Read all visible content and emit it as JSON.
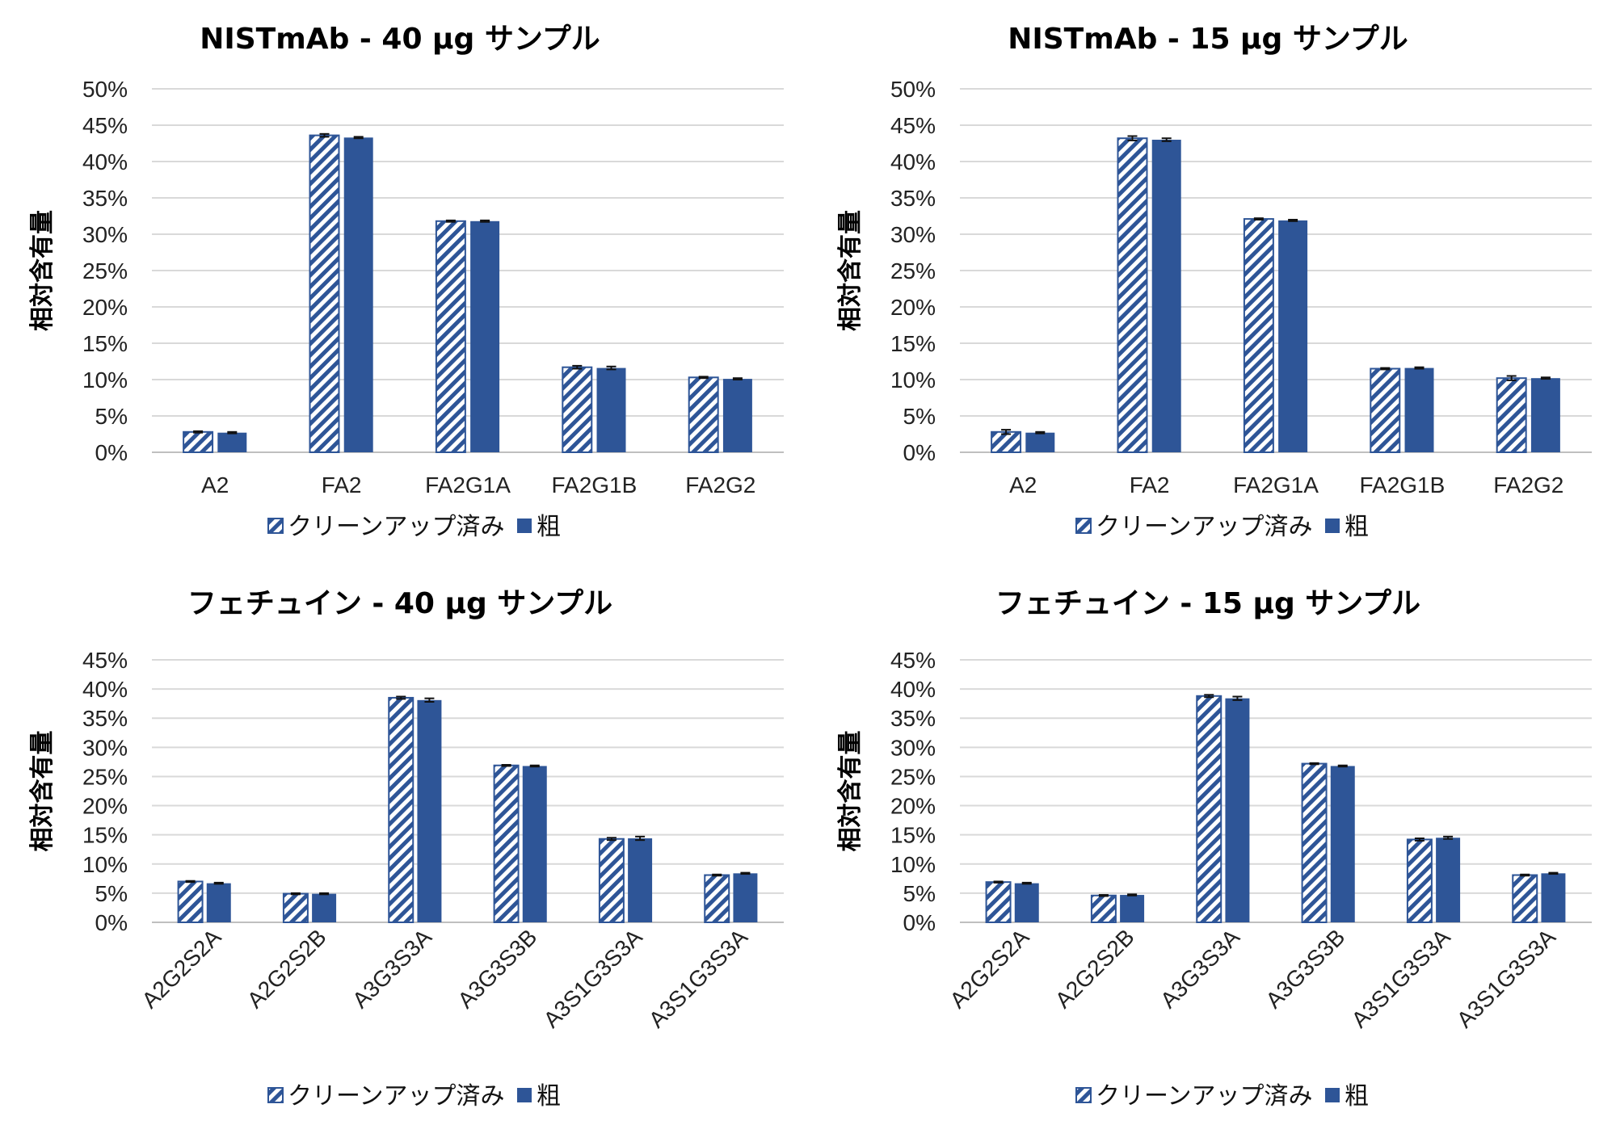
{
  "legend": {
    "series1": "クリーンアップ済み",
    "series2": "粗"
  },
  "colors": {
    "bar": "#2e5597",
    "hatch": "#2e5597",
    "grid": "#d9d9d9",
    "axis": "#bfbfbf",
    "error": "#111111"
  },
  "chart_data": [
    {
      "type": "bar",
      "title": "NISTmAb - 40 µg サンプル",
      "ylabel": "相対含有量",
      "xlabel": "",
      "ylim": [
        0,
        50
      ],
      "yticks": [
        "0%",
        "5%",
        "10%",
        "15%",
        "20%",
        "25%",
        "30%",
        "35%",
        "40%",
        "45%",
        "50%"
      ],
      "categories": [
        "A2",
        "FA2",
        "FA2G1A",
        "FA2G1B",
        "FA2G2"
      ],
      "rotate_labels": false,
      "grid": true,
      "legend_position": "bottom",
      "series": [
        {
          "name": "クリーンアップ済み",
          "style": "hatched",
          "values": [
            2.8,
            43.6,
            31.8,
            11.7,
            10.3
          ],
          "errors": [
            0.1,
            0.2,
            0.1,
            0.2,
            0.1
          ]
        },
        {
          "name": "粗",
          "style": "solid",
          "values": [
            2.7,
            43.3,
            31.8,
            11.6,
            10.1
          ],
          "errors": [
            0.1,
            0.1,
            0.1,
            0.2,
            0.1
          ]
        }
      ]
    },
    {
      "type": "bar",
      "title": "NISTmAb - 15 µg サンプル",
      "ylabel": "相対含有量",
      "xlabel": "",
      "ylim": [
        0,
        50
      ],
      "yticks": [
        "0%",
        "5%",
        "10%",
        "15%",
        "20%",
        "25%",
        "30%",
        "35%",
        "40%",
        "45%",
        "50%"
      ],
      "categories": [
        "A2",
        "FA2",
        "FA2G1A",
        "FA2G1B",
        "FA2G2"
      ],
      "rotate_labels": false,
      "grid": true,
      "legend_position": "bottom",
      "series": [
        {
          "name": "クリーンアップ済み",
          "style": "hatched",
          "values": [
            2.8,
            43.2,
            32.1,
            11.5,
            10.2
          ],
          "errors": [
            0.3,
            0.3,
            0.1,
            0.1,
            0.3
          ]
        },
        {
          "name": "粗",
          "style": "solid",
          "values": [
            2.7,
            43.0,
            31.9,
            11.6,
            10.2
          ],
          "errors": [
            0.1,
            0.2,
            0.1,
            0.1,
            0.1
          ]
        }
      ]
    },
    {
      "type": "bar",
      "title": "フェチュイン - 40 µg サンプル",
      "ylabel": "相対含有量",
      "xlabel": "",
      "ylim": [
        0,
        45
      ],
      "yticks": [
        "0%",
        "5%",
        "10%",
        "15%",
        "20%",
        "25%",
        "30%",
        "35%",
        "40%",
        "45%"
      ],
      "categories": [
        "A2G2S2A",
        "A2G2S2B",
        "A3G3S3A",
        "A3G3S3B",
        "A3S1G3S3A",
        "A3S1G3S3A"
      ],
      "rotate_labels": true,
      "grid": true,
      "legend_position": "bottom",
      "series": [
        {
          "name": "クリーンアップ済み",
          "style": "hatched",
          "values": [
            7.0,
            4.9,
            38.5,
            26.9,
            14.3,
            8.1
          ],
          "errors": [
            0.1,
            0.1,
            0.2,
            0.1,
            0.2,
            0.1
          ]
        },
        {
          "name": "粗",
          "style": "solid",
          "values": [
            6.7,
            4.9,
            38.1,
            26.8,
            14.4,
            8.4
          ],
          "errors": [
            0.1,
            0.1,
            0.3,
            0.1,
            0.3,
            0.1
          ]
        }
      ]
    },
    {
      "type": "bar",
      "title": "フェチュイン - 15 µg サンプル",
      "ylabel": "相対含有量",
      "xlabel": "",
      "ylim": [
        0,
        45
      ],
      "yticks": [
        "0%",
        "5%",
        "10%",
        "15%",
        "20%",
        "25%",
        "30%",
        "35%",
        "40%",
        "45%"
      ],
      "categories": [
        "A2G2S2A",
        "A2G2S2B",
        "A3G3S3A",
        "A3G3S3B",
        "A3S1G3S3A",
        "A3S1G3S3A"
      ],
      "rotate_labels": true,
      "grid": true,
      "legend_position": "bottom",
      "series": [
        {
          "name": "クリーンアップ済み",
          "style": "hatched",
          "values": [
            6.9,
            4.6,
            38.8,
            27.2,
            14.2,
            8.1
          ],
          "errors": [
            0.1,
            0.1,
            0.2,
            0.1,
            0.2,
            0.1
          ]
        },
        {
          "name": "粗",
          "style": "solid",
          "values": [
            6.7,
            4.7,
            38.4,
            26.8,
            14.5,
            8.4
          ],
          "errors": [
            0.1,
            0.1,
            0.3,
            0.1,
            0.2,
            0.1
          ]
        }
      ]
    }
  ]
}
